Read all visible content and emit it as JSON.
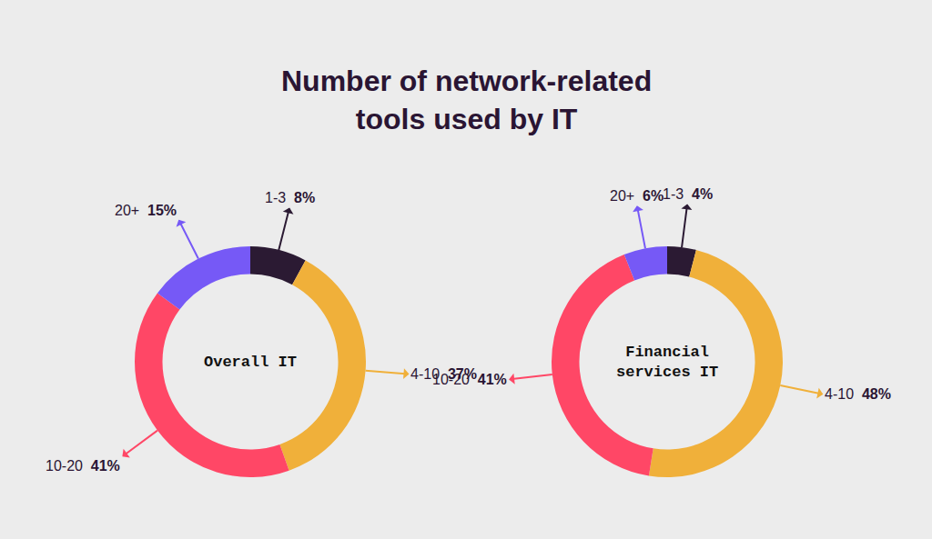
{
  "title": "Number of network-related tools used by IT",
  "chart_data": [
    {
      "type": "donut",
      "title": "Overall IT",
      "categories": [
        "1-3",
        "4-10",
        "10-20",
        "20+"
      ],
      "values": [
        8,
        37,
        41,
        15
      ],
      "value_labels": [
        "8%",
        "37%",
        "41%",
        "15%"
      ],
      "colors": [
        "#2b1a33",
        "#f0b03a",
        "#ff4766",
        "#7659f6"
      ],
      "data_labels": true
    },
    {
      "type": "donut",
      "title": "Financial services IT",
      "categories": [
        "1-3",
        "4-10",
        "10-20",
        "20+"
      ],
      "values": [
        4,
        48,
        41,
        6
      ],
      "value_labels": [
        "4%",
        "48%",
        "41%",
        "6%"
      ],
      "colors": [
        "#2b1a33",
        "#f0b03a",
        "#ff4766",
        "#7659f6"
      ],
      "data_labels": true
    }
  ]
}
